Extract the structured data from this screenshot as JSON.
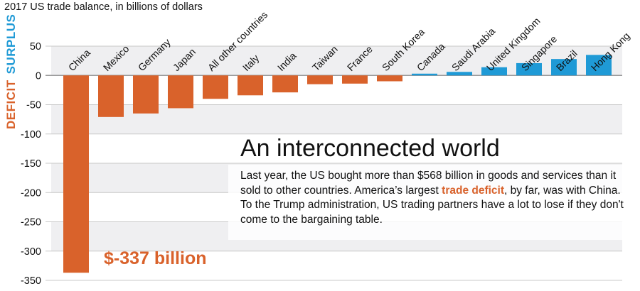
{
  "colors": {
    "deficit": "#d9622b",
    "surplus": "#1f9ad6",
    "band": "#efeff1",
    "grid": "#c8c8c8"
  },
  "axis_side_labels": {
    "deficit": "DEFICIT",
    "surplus": "SURPLUS"
  },
  "annotation": {
    "headline": "An interconnected world",
    "body_before": "Last year, the US bought more than $568 billion in goods and services than it sold to other countries. America’s largest ",
    "body_highlight": "trade deficit",
    "body_after": ", by far, was with China. To the Trump administration, US trading partners have a lot to lose if they don't come to the bargaining table.",
    "callout": "$-337 billion"
  },
  "chart_data": {
    "type": "bar",
    "title": "2017 US trade balance, in billions of dollars",
    "xlabel": "",
    "ylabel": "DEFICIT / SURPLUS",
    "ylim": [
      -350,
      50
    ],
    "yticks": [
      50,
      0,
      -50,
      -100,
      -150,
      -200,
      -250,
      -300,
      -350
    ],
    "grid": true,
    "categories": [
      "China",
      "Mexico",
      "Germany",
      "Japan",
      "All other countries",
      "Italy",
      "India",
      "Taiwan",
      "France",
      "South Korea",
      "Canada",
      "Saudi Arabia",
      "United Kingdom",
      "Singapore",
      "Brazil",
      "Hong Kong"
    ],
    "values": [
      -337,
      -71,
      -65,
      -56,
      -40,
      -34,
      -29,
      -15,
      -14,
      -10,
      3,
      6,
      14,
      21,
      28,
      35
    ]
  }
}
